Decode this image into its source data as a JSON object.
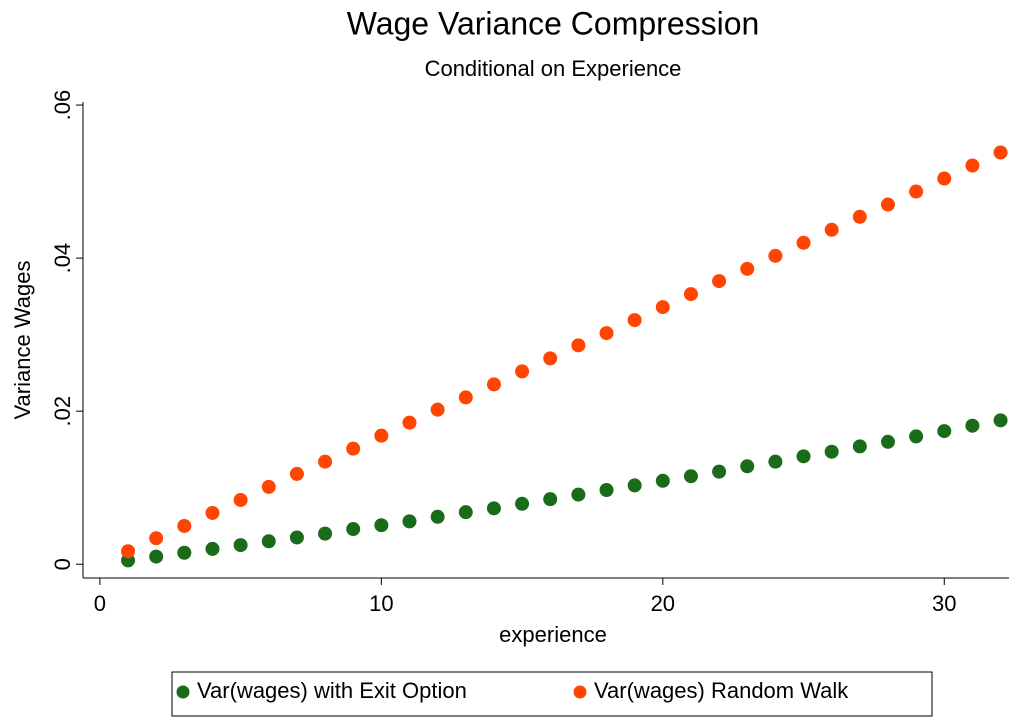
{
  "chart_data": {
    "type": "scatter",
    "title": "Wage Variance Compression",
    "subtitle": "Conditional on Experience",
    "x_label": "experience",
    "y_label": "Variance Wages",
    "x": [
      1,
      2,
      3,
      4,
      5,
      6,
      7,
      8,
      9,
      10,
      11,
      12,
      13,
      14,
      15,
      16,
      17,
      18,
      19,
      20,
      21,
      22,
      23,
      24,
      25,
      26,
      27,
      28,
      29,
      30,
      31,
      32
    ],
    "series": [
      {
        "name": "Var(wages) with Exit Option",
        "color": "#1a6b1a",
        "values": [
          0.0005,
          0.001,
          0.0015,
          0.002,
          0.0025,
          0.003,
          0.0035,
          0.004,
          0.0046,
          0.0051,
          0.0056,
          0.0062,
          0.0068,
          0.0073,
          0.0079,
          0.0085,
          0.0091,
          0.0097,
          0.0103,
          0.0109,
          0.0115,
          0.0121,
          0.0128,
          0.0134,
          0.0141,
          0.0147,
          0.0154,
          0.016,
          0.0167,
          0.0174,
          0.0181,
          0.0188
        ]
      },
      {
        "name": "Var(wages) Random Walk",
        "color": "#ff4500",
        "values": [
          0.0017,
          0.0034,
          0.005,
          0.0067,
          0.0084,
          0.0101,
          0.0118,
          0.0134,
          0.0151,
          0.0168,
          0.0185,
          0.0202,
          0.0218,
          0.0235,
          0.0252,
          0.0269,
          0.0286,
          0.0302,
          0.0319,
          0.0336,
          0.0353,
          0.037,
          0.0386,
          0.0403,
          0.042,
          0.0437,
          0.0454,
          0.047,
          0.0487,
          0.0504,
          0.0521,
          0.0538
        ]
      }
    ],
    "xlim": [
      -0.6,
      32.3
    ],
    "xticks": [
      0,
      10,
      20,
      30
    ],
    "ylim": [
      -0.0018,
      0.0604
    ],
    "yticks": [
      0,
      {
        "value": 0.02,
        "label": ".02"
      },
      {
        "value": 0.04,
        "label": ".04"
      },
      {
        "value": 0.06,
        "label": ".06"
      }
    ],
    "grid": false,
    "legend": "bottom"
  }
}
